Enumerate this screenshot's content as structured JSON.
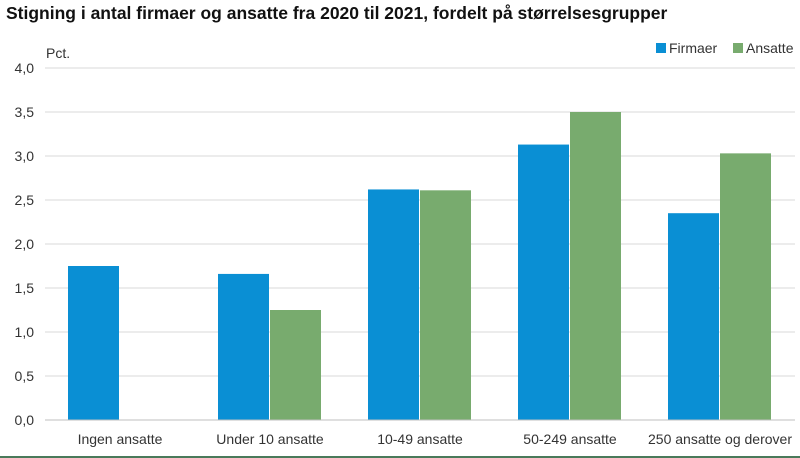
{
  "chart_data": {
    "type": "bar",
    "title": "Stigning i antal firmaer og ansatte fra 2020 til 2021, fordelt på størrelsesgrupper",
    "ylabel": "Pct.",
    "xlabel": "",
    "ylim": [
      0,
      4.0
    ],
    "yticks": [
      "0,0",
      "0,5",
      "1,0",
      "1,5",
      "2,0",
      "2,5",
      "3,0",
      "3,5",
      "4,0"
    ],
    "categories": [
      "Ingen ansatte",
      "Under 10 ansatte",
      "10-49 ansatte",
      "50-249 ansatte",
      "250 ansatte og derover"
    ],
    "series": [
      {
        "name": "Firmaer",
        "color": "#0a8fd4",
        "values": [
          1.75,
          1.66,
          2.62,
          3.13,
          2.35
        ]
      },
      {
        "name": "Ansatte",
        "color": "#78ab6e",
        "values": [
          null,
          1.25,
          2.61,
          3.5,
          3.03
        ]
      }
    ],
    "grid": true,
    "legend_position": "top-right"
  }
}
